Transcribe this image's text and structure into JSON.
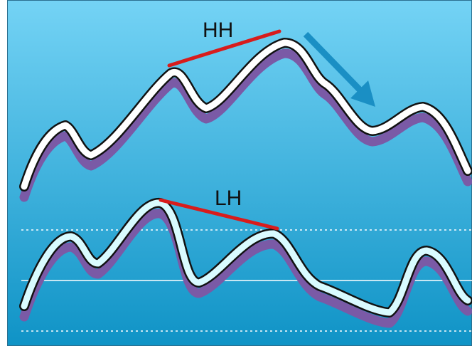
{
  "diagram": {
    "top_label": "HH",
    "bottom_label": "LH",
    "colors": {
      "background_top": "#74d3f5",
      "background_bottom": "#0f93c6",
      "trend_line": "#d81c1c",
      "price_line": "#ffffff",
      "oscillator_line": "#d9fbff",
      "shadow": "#7a5aa6",
      "arrow": "#1a8fc4",
      "outline": "#111111"
    },
    "icons": {
      "direction_arrow": "down-right-arrow-icon"
    }
  }
}
